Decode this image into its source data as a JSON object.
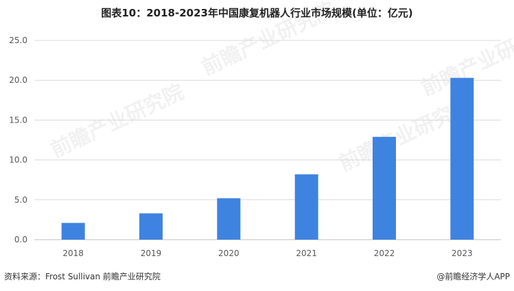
{
  "chart_data": {
    "type": "bar",
    "title": "图表10：2018-2023年中国康复机器人行业市场规模(单位：亿元)",
    "categories": [
      "2018",
      "2019",
      "2020",
      "2021",
      "2022",
      "2023"
    ],
    "values": [
      2.1,
      3.3,
      5.2,
      8.2,
      12.9,
      20.3
    ],
    "ylim": [
      0,
      25
    ],
    "yticks": [
      "0.0",
      "5.0",
      "10.0",
      "15.0",
      "20.0",
      "25.0"
    ],
    "ytick_values": [
      0,
      5,
      10,
      15,
      20,
      25
    ],
    "grid": true,
    "bar_color": "#3f83e0"
  },
  "footer": {
    "source": "资料来源：Frost Sullivan 前瞻产业研究院",
    "brand": "@前瞻经济学人APP"
  },
  "watermark": "前瞻产业研究院"
}
